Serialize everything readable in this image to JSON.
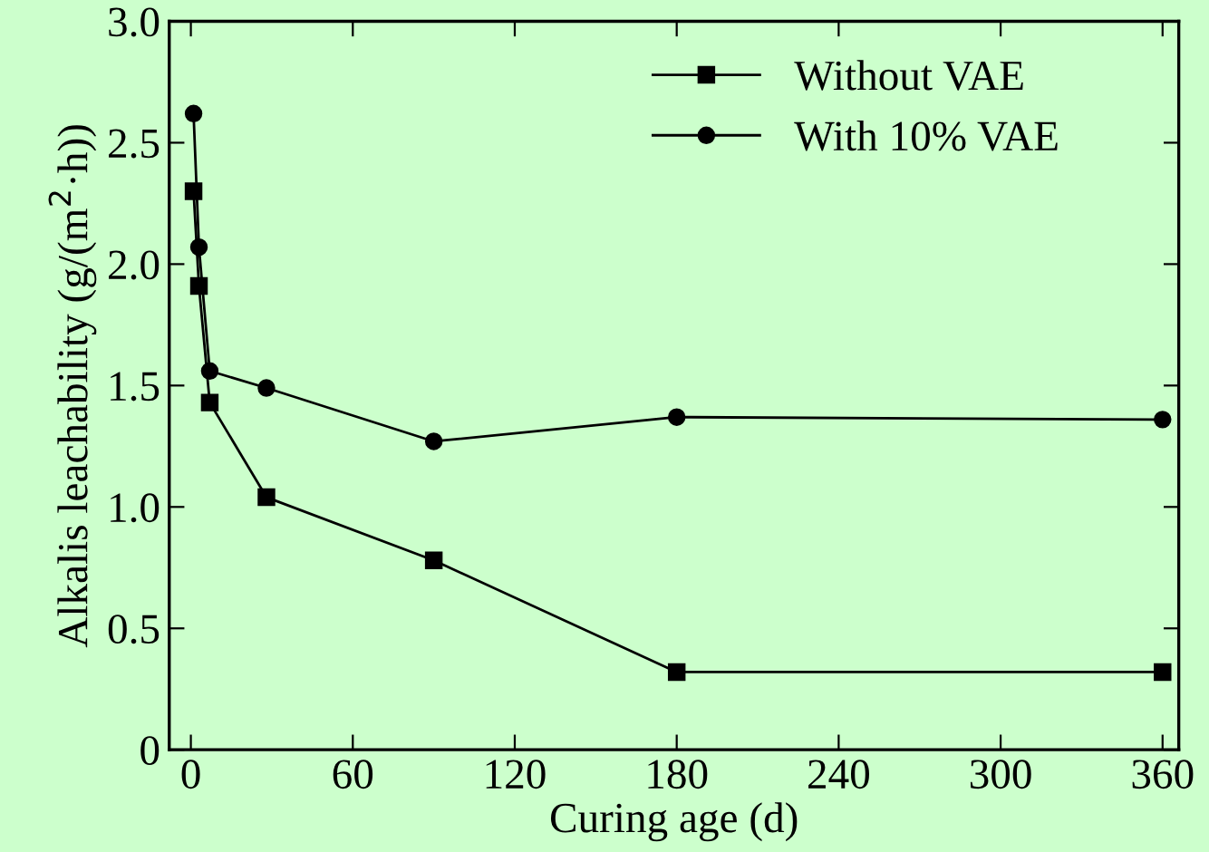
{
  "chart_data": {
    "type": "line",
    "xlabel": "Curing age (d)",
    "ylabel": "Alkalis leachability (g/(m$^{2}$·h))",
    "xlim": [
      -8,
      366
    ],
    "xticks": [
      0,
      60,
      120,
      180,
      240,
      300,
      360
    ],
    "ylim": [
      0,
      3.0
    ],
    "yticks": [
      {
        "value": 0,
        "label": "0"
      },
      0.5,
      {
        "value": 1,
        "label": "1.0"
      },
      1.5,
      {
        "value": 2,
        "label": "2.0"
      },
      2.5,
      {
        "value": 3,
        "label": "3.0"
      }
    ],
    "grid": false,
    "legend": "top right",
    "line_style": "solid",
    "series": [
      {
        "name": "Without VAE",
        "color": "#000000",
        "marker": "square",
        "x": [
          1,
          3,
          7,
          28,
          90,
          180,
          360
        ],
        "values": [
          2.3,
          1.91,
          1.43,
          1.04,
          0.78,
          0.32,
          0.32
        ]
      },
      {
        "name": "With 10% VAE",
        "color": "#000000",
        "marker": "circle",
        "x": [
          1,
          3,
          7,
          28,
          90,
          180,
          360
        ],
        "values": [
          2.62,
          2.07,
          1.56,
          1.49,
          1.27,
          1.37,
          1.36
        ]
      }
    ]
  }
}
